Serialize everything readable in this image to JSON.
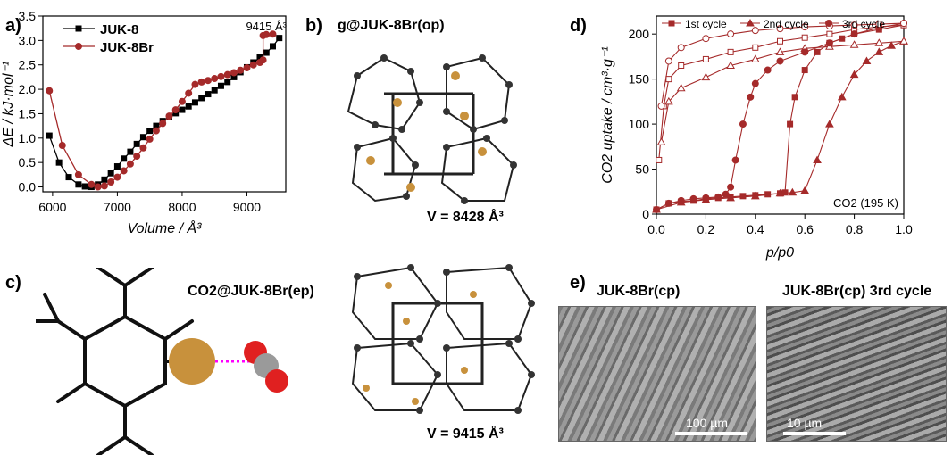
{
  "panels": {
    "a": "a)",
    "b": "b)",
    "c": "c)",
    "d": "d)",
    "e": "e)"
  },
  "panel_b": {
    "title": "g@JUK-8Br(op)",
    "volume": "V = 8428 Å³"
  },
  "panel_c": {
    "title": "CO2@JUK-8Br(ep)",
    "volume": "V = 9415 Å³"
  },
  "panel_e": {
    "left_title": "JUK-8Br(cp)",
    "right_title": "JUK-8Br(cp) 3rd cycle",
    "left_scale": "100 µm",
    "right_scale": "10 µm"
  },
  "colors": {
    "juk8": "#000000",
    "juk8br": "#a52a2a",
    "co2_cycles": "#a52a2a",
    "br_atom": "#c8913c",
    "o_atom": "#e02020",
    "c_atom": "#9a9a9a",
    "bond": "#ff00ff"
  },
  "chart_data": [
    {
      "id": "a",
      "type": "line",
      "xlabel": "Volume / Å³",
      "ylabel": "ΔE / kJ·mol⁻¹",
      "xlim": [
        5850,
        9600
      ],
      "ylim": [
        -0.1,
        3.5
      ],
      "xticks": [
        6000,
        7000,
        8000,
        9000
      ],
      "yticks": [
        0.0,
        0.5,
        1.0,
        1.5,
        2.0,
        2.5,
        3.0,
        3.5
      ],
      "annotation": "9415 Å³",
      "legend": "top-left",
      "series": [
        {
          "name": "JUK-8",
          "marker": "square",
          "x": [
            5950,
            6100,
            6250,
            6400,
            6500,
            6600,
            6700,
            6800,
            6900,
            7000,
            7100,
            7200,
            7300,
            7400,
            7500,
            7600,
            7700,
            7800,
            7900,
            8000,
            8100,
            8200,
            8300,
            8400,
            8500,
            8600,
            8700,
            8800,
            8900,
            9000,
            9100,
            9200,
            9300,
            9400,
            9500
          ],
          "y": [
            1.05,
            0.5,
            0.2,
            0.05,
            0.01,
            0.0,
            0.05,
            0.15,
            0.28,
            0.42,
            0.58,
            0.72,
            0.88,
            1.02,
            1.15,
            1.25,
            1.35,
            1.43,
            1.51,
            1.58,
            1.65,
            1.73,
            1.82,
            1.9,
            1.98,
            2.07,
            2.15,
            2.25,
            2.35,
            2.45,
            2.55,
            2.65,
            2.75,
            2.88,
            3.05
          ]
        },
        {
          "name": "JUK-8Br",
          "marker": "circle",
          "x": [
            5950,
            6150,
            6400,
            6600,
            6700,
            6800,
            6900,
            7000,
            7100,
            7200,
            7300,
            7400,
            7500,
            7600,
            7700,
            7800,
            7900,
            8000,
            8100,
            8200,
            8300,
            8400,
            8500,
            8600,
            8700,
            8800,
            8900,
            9000,
            9100,
            9200,
            9250,
            9250,
            9300,
            9400
          ],
          "y": [
            1.97,
            0.85,
            0.25,
            0.05,
            0.0,
            0.02,
            0.1,
            0.2,
            0.33,
            0.47,
            0.63,
            0.8,
            0.98,
            1.15,
            1.3,
            1.45,
            1.58,
            1.75,
            1.92,
            2.1,
            2.15,
            2.18,
            2.22,
            2.26,
            2.3,
            2.34,
            2.39,
            2.44,
            2.5,
            2.55,
            2.6,
            3.1,
            3.12,
            3.13
          ]
        }
      ]
    },
    {
      "id": "d",
      "type": "line",
      "xlabel": "p/p0",
      "ylabel": "CO2 uptake / cm³·g⁻¹",
      "xlim": [
        0,
        1.0
      ],
      "ylim": [
        0,
        220
      ],
      "xticks": [
        0.0,
        0.2,
        0.4,
        0.6,
        0.8,
        1.0
      ],
      "yticks": [
        0,
        50,
        100,
        150,
        200
      ],
      "annotation": "CO2 (195 K)",
      "legend": "top",
      "series": [
        {
          "name": "1st cycle",
          "marker": "square",
          "branch": "adsorption",
          "x": [
            0.0,
            0.05,
            0.1,
            0.15,
            0.2,
            0.25,
            0.3,
            0.35,
            0.4,
            0.45,
            0.5,
            0.52,
            0.54,
            0.56,
            0.6,
            0.65,
            0.7,
            0.75,
            0.8,
            0.9,
            1.0
          ],
          "y": [
            5,
            12,
            14,
            15,
            17,
            18,
            19,
            20,
            21,
            22,
            23,
            24,
            100,
            130,
            160,
            180,
            190,
            195,
            200,
            205,
            210
          ]
        },
        {
          "name": "1st cycle desorption",
          "marker": "square-open",
          "branch": "desorption",
          "x": [
            1.0,
            0.9,
            0.8,
            0.7,
            0.6,
            0.5,
            0.4,
            0.3,
            0.2,
            0.1,
            0.05,
            0.03,
            0.01
          ],
          "y": [
            210,
            208,
            205,
            200,
            196,
            192,
            185,
            180,
            172,
            165,
            150,
            120,
            60
          ]
        },
        {
          "name": "2nd cycle",
          "marker": "triangle",
          "branch": "adsorption",
          "x": [
            0.0,
            0.1,
            0.2,
            0.3,
            0.4,
            0.5,
            0.55,
            0.6,
            0.65,
            0.7,
            0.75,
            0.8,
            0.85,
            0.9,
            0.95,
            1.0
          ],
          "y": [
            5,
            13,
            16,
            18,
            20,
            23,
            24,
            26,
            60,
            100,
            130,
            155,
            170,
            180,
            187,
            192
          ]
        },
        {
          "name": "2nd cycle desorption",
          "marker": "triangle-open",
          "branch": "desorption",
          "x": [
            1.0,
            0.9,
            0.8,
            0.7,
            0.6,
            0.5,
            0.4,
            0.3,
            0.2,
            0.1,
            0.05,
            0.02
          ],
          "y": [
            192,
            190,
            188,
            186,
            184,
            180,
            172,
            165,
            152,
            140,
            125,
            80
          ]
        },
        {
          "name": "3rd cycle",
          "marker": "circle",
          "branch": "adsorption",
          "x": [
            0.0,
            0.05,
            0.1,
            0.15,
            0.2,
            0.25,
            0.28,
            0.3,
            0.32,
            0.35,
            0.38,
            0.4,
            0.45,
            0.5,
            0.6,
            0.7,
            0.8,
            0.9,
            1.0
          ],
          "y": [
            5,
            12,
            15,
            17,
            18,
            19,
            22,
            30,
            60,
            100,
            130,
            145,
            160,
            170,
            180,
            190,
            200,
            207,
            212
          ]
        },
        {
          "name": "3rd cycle desorption",
          "marker": "circle-open",
          "branch": "desorption",
          "x": [
            1.0,
            0.9,
            0.8,
            0.7,
            0.6,
            0.5,
            0.4,
            0.3,
            0.2,
            0.1,
            0.05,
            0.02
          ],
          "y": [
            212,
            211,
            210,
            209,
            208,
            206,
            204,
            200,
            195,
            185,
            170,
            120
          ]
        }
      ]
    }
  ]
}
